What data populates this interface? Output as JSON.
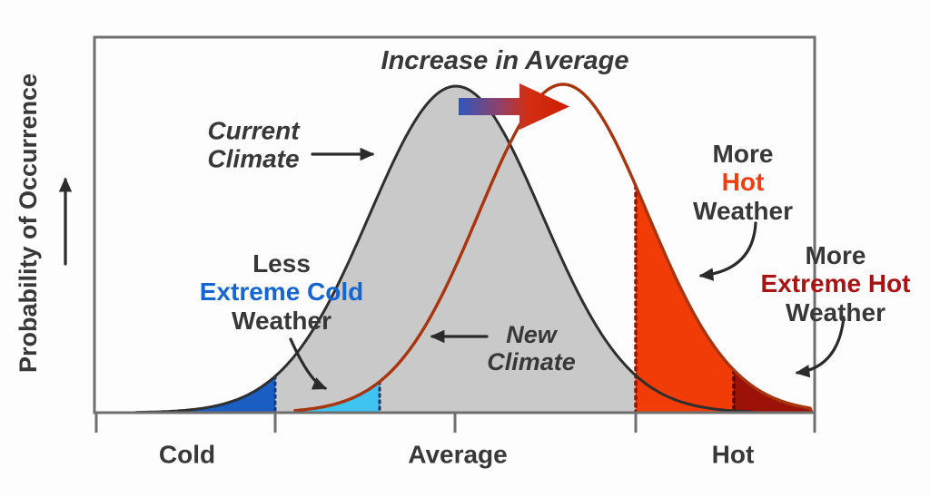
{
  "diagram_title": "Increase in Average",
  "y_axis": {
    "label": "Probability of Occurrence"
  },
  "x_axis": {
    "tick_labels": [
      "Cold",
      "Average",
      "Hot"
    ]
  },
  "curves": {
    "current": {
      "line1": "Current",
      "line2": "Climate"
    },
    "new": {
      "line1": "New",
      "line2": "Climate"
    }
  },
  "callouts": {
    "less_extreme_cold": {
      "line1": "Less",
      "line2": "Extreme Cold",
      "line3": "Weather"
    },
    "more_hot": {
      "line1": "More",
      "line2": "Hot",
      "line3": "Weather"
    },
    "more_extreme_hot": {
      "line1": "More",
      "line2": "Extreme Hot",
      "line3": "Weather"
    }
  },
  "colors": {
    "text": "#383838",
    "cold_text": "#1565d2",
    "hot_text": "#f23d12",
    "extreme_hot_text": "#a81414",
    "frame": "#6f6f6f",
    "current_fill": "#c9c9c9",
    "current_stroke": "#2f2f2f",
    "new_stroke": "#a8350e",
    "extreme_cold_fill": "#1a5ec2",
    "less_extreme_cold_fill": "#3fc3f0",
    "hot_fill": "#f13c08",
    "extreme_hot_fill": "#9c1208",
    "threshold_cold": "#0a3c9c",
    "threshold_less_cold": "#1d3a66",
    "threshold_hot": "#8c1a00",
    "threshold_extreme_hot": "#5c0a04",
    "annotation_arrow": "#2b2b2b",
    "shift_arrow_blue": "#2e57bd",
    "shift_arrow_mid": "#973f63",
    "shift_arrow_red1": "#d12f14",
    "shift_arrow_red2": "#cf1d02"
  }
}
